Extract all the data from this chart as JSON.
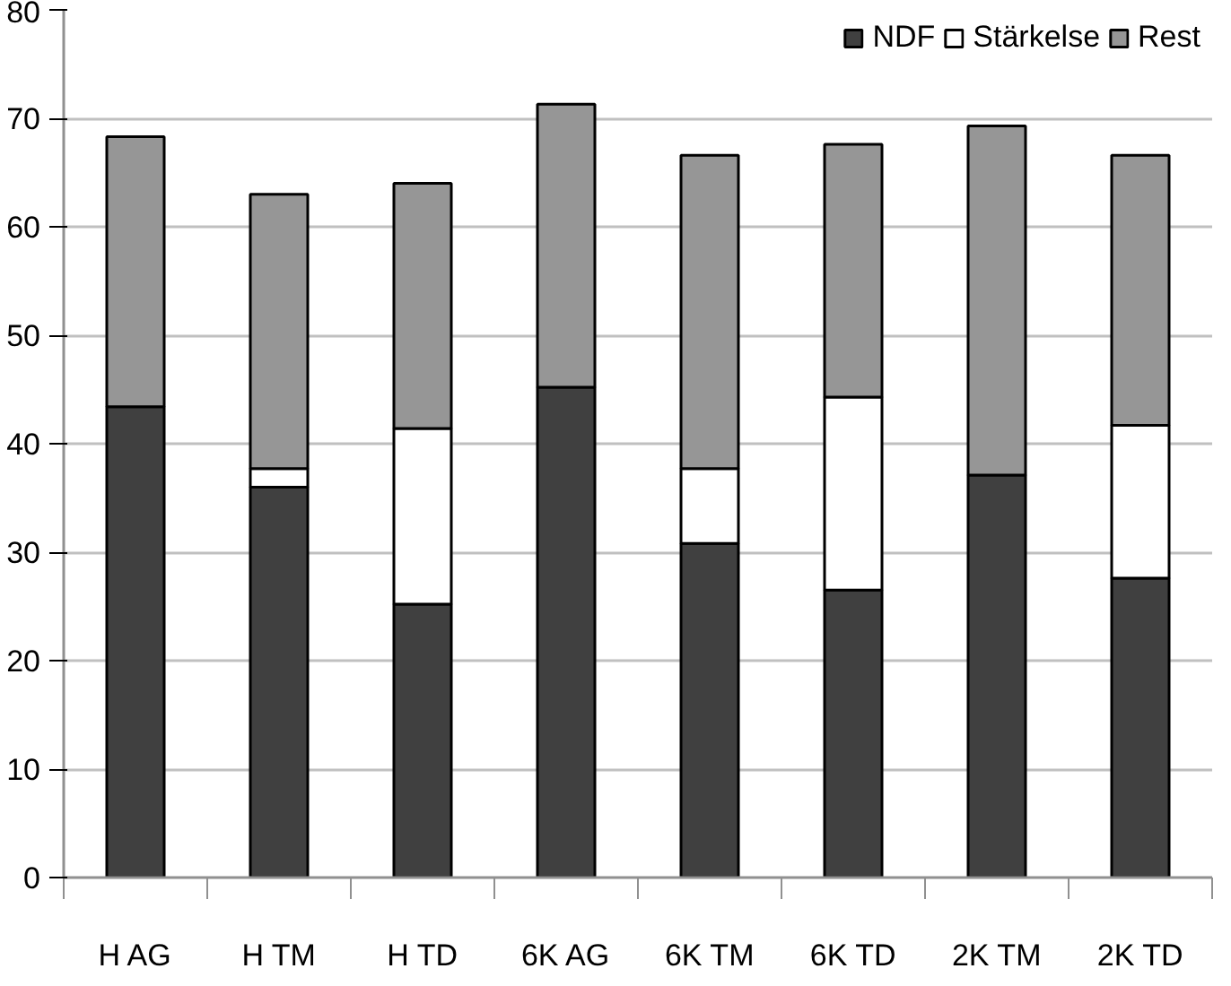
{
  "chart_data": {
    "type": "bar",
    "stacked": true,
    "categories": [
      "H AG",
      "H TM",
      "H TD",
      "6K AG",
      "6K TM",
      "6K TD",
      "2K TM",
      "2K TD"
    ],
    "series": [
      {
        "name": "NDF",
        "color": "#404040",
        "values": [
          43.4,
          36.0,
          25.2,
          45.2,
          30.8,
          26.5,
          37.1,
          27.6
        ]
      },
      {
        "name": "Stärkelse",
        "color": "#ffffff",
        "values": [
          0,
          1.7,
          16.2,
          0,
          6.9,
          17.8,
          0,
          14.1
        ]
      },
      {
        "name": "Rest",
        "color": "#969696",
        "values": [
          24.9,
          25.3,
          22.6,
          26.1,
          28.9,
          23.3,
          32.2,
          24.9
        ]
      }
    ],
    "ylim": [
      0,
      80
    ],
    "yticks": [
      0,
      10,
      20,
      30,
      40,
      50,
      60,
      70,
      80
    ],
    "grid": "y",
    "legend": "top right"
  }
}
